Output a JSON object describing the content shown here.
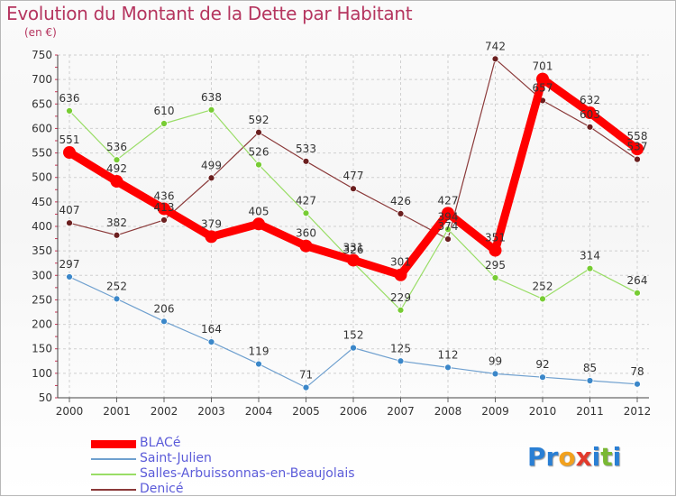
{
  "title": "Evolution du Montant de la Dette par Habitant",
  "unit": "(en €)",
  "logo": {
    "text": "Proxiti",
    "letters": [
      "P",
      "r",
      "o",
      "x",
      "i",
      "t",
      "i"
    ],
    "colors": [
      "#2a7fd4",
      "#2a7fd4",
      "#f2a11d",
      "#e23a2c",
      "#2a7fd4",
      "#7ab834",
      "#2a7fd4"
    ]
  },
  "chart_data": {
    "type": "line",
    "title": "Evolution du Montant de la Dette par Habitant",
    "ylabel": "(en €)",
    "xlabel": "",
    "x": [
      "2000",
      "2001",
      "2002",
      "2003",
      "2004",
      "2005",
      "2006",
      "2007",
      "2008",
      "2009",
      "2010",
      "2011",
      "2012"
    ],
    "ylim": [
      50,
      750
    ],
    "yticks": [
      50,
      100,
      150,
      200,
      250,
      300,
      350,
      400,
      450,
      500,
      550,
      600,
      650,
      700,
      750
    ],
    "grid": true,
    "legend_position": "bottom-left",
    "series": [
      {
        "name": "BLACé",
        "color": "#ff0000",
        "marker": "#ff0000",
        "values": [
          551,
          492,
          436,
          379,
          405,
          360,
          331,
          301,
          427,
          351,
          701,
          632,
          558
        ],
        "labels": [
          "551",
          "492",
          "436",
          "379",
          "405",
          "360",
          "331",
          "301",
          "427",
          "351",
          "701",
          "632",
          "558"
        ]
      },
      {
        "name": "Saint-Julien",
        "color": "#6fa0cf",
        "marker": "#3b87c9",
        "values": [
          297,
          252,
          206,
          164,
          119,
          71,
          152,
          125,
          112,
          99,
          92,
          85,
          78
        ],
        "labels": [
          "297",
          "252",
          "206",
          "164",
          "119",
          "71",
          "152",
          "125",
          "112",
          "99",
          "92",
          "85",
          "78"
        ]
      },
      {
        "name": "Salles-Arbuissonnas-en-Beaujolais",
        "color": "#99dd66",
        "marker": "#77cc33",
        "values": [
          636,
          536,
          610,
          638,
          526,
          427,
          326,
          229,
          394,
          295,
          252,
          314,
          264
        ],
        "labels": [
          "636",
          "536",
          "610",
          "638",
          "526",
          "427",
          "326",
          "229",
          "394",
          "295",
          "252",
          "314",
          "264"
        ]
      },
      {
        "name": "Denicé",
        "color": "#8b3a3a",
        "marker": "#6b1f1f",
        "values": [
          407,
          382,
          413,
          499,
          592,
          533,
          477,
          426,
          374,
          742,
          657,
          603,
          537
        ],
        "labels": [
          "407",
          "382",
          "413",
          "499",
          "592",
          "533",
          "477",
          "426",
          "374",
          "742",
          "657",
          "603",
          "537"
        ]
      }
    ]
  }
}
